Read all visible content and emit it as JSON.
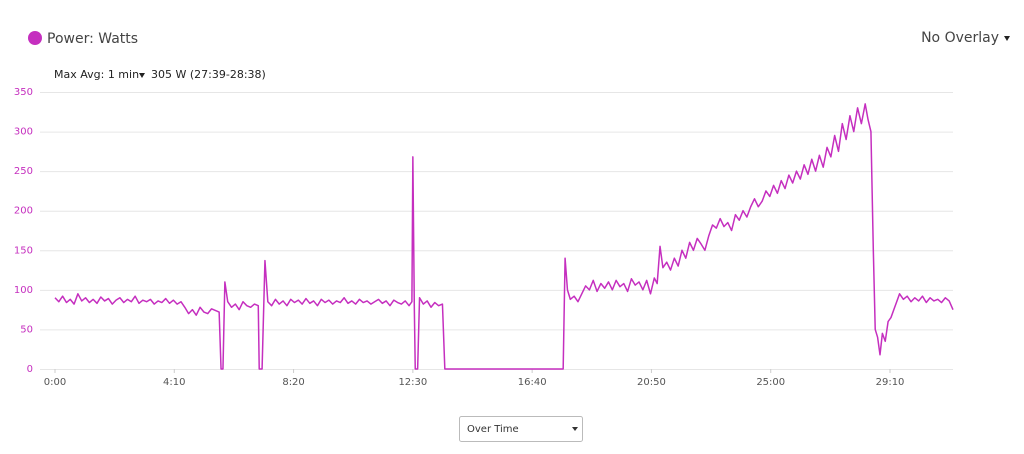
{
  "chart_data": {
    "type": "line",
    "series": [
      {
        "name": "Power: Watts",
        "color": "#c52fbf",
        "values": [
          90,
          85,
          92,
          84,
          88,
          82,
          95,
          86,
          90,
          84,
          88,
          83,
          91,
          86,
          89,
          82,
          87,
          90,
          84,
          88,
          85,
          92,
          83,
          87,
          85,
          88,
          82,
          86,
          84,
          89,
          83,
          87,
          82,
          85,
          78,
          70,
          75,
          68,
          78,
          72,
          70,
          76,
          74,
          72,
          0,
          0,
          110,
          85,
          78,
          82,
          75,
          85,
          80,
          78,
          82,
          80,
          0,
          0,
          137,
          85,
          80,
          88,
          82,
          86,
          80,
          88,
          84,
          87,
          82,
          89,
          83,
          86,
          80,
          88,
          84,
          87,
          82,
          86,
          84,
          90,
          83,
          86,
          82,
          88,
          84,
          86,
          82,
          85,
          88,
          83,
          86,
          80,
          87,
          84,
          82,
          86,
          80,
          85,
          268,
          80,
          0,
          0,
          90,
          82,
          86,
          78,
          84,
          80,
          82,
          0,
          0,
          140,
          100,
          88,
          92,
          85,
          95,
          105,
          100,
          112,
          98,
          108,
          102,
          110,
          100,
          112,
          104,
          108,
          98,
          114,
          106,
          110,
          100,
          112,
          95,
          115,
          108,
          155,
          128,
          135,
          125,
          140,
          130,
          150,
          140,
          160,
          150,
          165,
          158,
          150,
          168,
          182,
          178,
          190,
          180,
          185,
          175,
          195,
          188,
          200,
          192,
          205,
          215,
          205,
          212,
          225,
          218,
          232,
          222,
          238,
          228,
          245,
          235,
          250,
          240,
          258,
          246,
          265,
          250,
          270,
          255,
          280,
          268,
          295,
          275,
          310,
          290,
          320,
          300,
          330,
          310,
          335,
          315,
          300,
          150,
          50,
          40,
          18,
          45,
          35,
          60,
          65,
          75,
          85,
          95,
          88,
          92,
          85,
          90,
          86,
          92,
          84,
          90,
          86,
          88,
          84,
          90,
          86,
          75
        ]
      }
    ],
    "x": [
      0,
      8,
      16,
      24,
      32,
      40,
      48,
      56,
      64,
      72,
      80,
      88,
      96,
      104,
      112,
      120,
      128,
      136,
      144,
      152,
      160,
      168,
      176,
      184,
      192,
      200,
      208,
      216,
      224,
      232,
      240,
      248,
      256,
      264,
      272,
      280,
      288,
      296,
      304,
      312,
      320,
      328,
      336,
      344,
      348,
      352,
      356,
      362,
      370,
      378,
      386,
      394,
      402,
      410,
      418,
      426,
      428,
      434,
      440,
      446,
      454,
      462,
      470,
      478,
      486,
      494,
      502,
      510,
      518,
      526,
      534,
      542,
      550,
      558,
      566,
      574,
      582,
      590,
      598,
      606,
      614,
      622,
      630,
      638,
      646,
      654,
      662,
      670,
      678,
      686,
      694,
      702,
      710,
      718,
      726,
      734,
      742,
      748,
      750,
      753,
      755,
      760,
      764,
      772,
      780,
      788,
      796,
      804,
      812,
      817,
      1065,
      1069,
      1074,
      1080,
      1088,
      1096,
      1104,
      1112,
      1120,
      1128,
      1136,
      1144,
      1152,
      1160,
      1168,
      1176,
      1184,
      1192,
      1200,
      1208,
      1216,
      1224,
      1232,
      1240,
      1248,
      1256,
      1262,
      1268,
      1274,
      1282,
      1290,
      1298,
      1306,
      1314,
      1322,
      1330,
      1338,
      1346,
      1354,
      1362,
      1370,
      1378,
      1386,
      1394,
      1402,
      1410,
      1418,
      1426,
      1434,
      1442,
      1450,
      1458,
      1466,
      1474,
      1482,
      1490,
      1498,
      1506,
      1514,
      1522,
      1530,
      1538,
      1546,
      1554,
      1562,
      1570,
      1578,
      1586,
      1594,
      1602,
      1610,
      1618,
      1626,
      1634,
      1642,
      1650,
      1658,
      1666,
      1674,
      1682,
      1690,
      1698,
      1704,
      1710,
      1715,
      1719,
      1724,
      1729,
      1734,
      1740,
      1746,
      1752,
      1758,
      1764,
      1770,
      1778,
      1786,
      1794,
      1802,
      1810,
      1818,
      1826,
      1834,
      1842,
      1850,
      1858,
      1866,
      1874,
      1882
    ],
    "xlim": [
      0,
      1882
    ],
    "xticks": [
      {
        "value": 0,
        "label": "0:00"
      },
      {
        "value": 250,
        "label": "4:10"
      },
      {
        "value": 500,
        "label": "8:20"
      },
      {
        "value": 750,
        "label": "12:30"
      },
      {
        "value": 1000,
        "label": "16:40"
      },
      {
        "value": 1250,
        "label": "20:50"
      },
      {
        "value": 1500,
        "label": "25:00"
      },
      {
        "value": 1750,
        "label": "29:10"
      }
    ],
    "ylim": [
      0,
      350
    ],
    "yticks": [
      0,
      50,
      100,
      150,
      200,
      250,
      300,
      350
    ],
    "grid": true
  },
  "controls": {
    "overlay": "No Overlay",
    "max_avg_label": "Max Avg: 1 min",
    "max_avg_value": "305 W (27:39-28:38)",
    "view": "Over Time"
  }
}
